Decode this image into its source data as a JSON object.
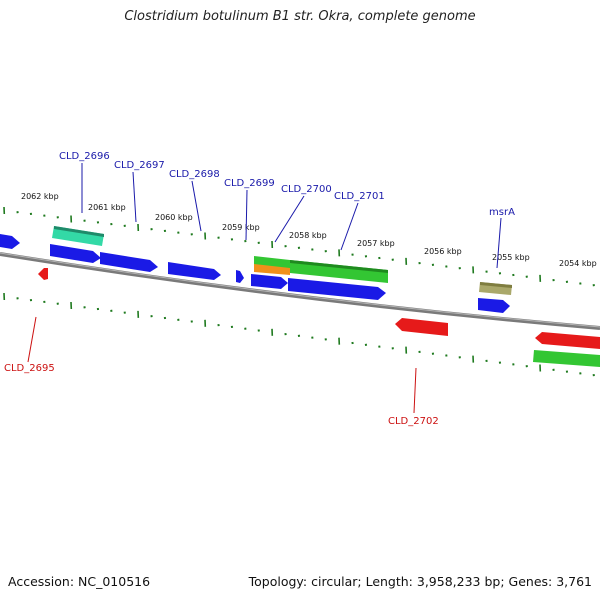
{
  "title": "Clostridium botulinum B1 str. Okra, complete genome",
  "footer": {
    "accession": "Accession: NC_010516",
    "topology": "Topology: circular; Length: 3,958,233 bp; Genes: 3,761"
  },
  "colors": {
    "backbone": "#7a7a7a",
    "tick": "#1f7a1f",
    "label_plus": "#1a1aaa",
    "label_minus": "#cc1111",
    "gene_blue": "#1a1ae6",
    "gene_red": "#e61a1a",
    "gene_green": "#33c633",
    "gene_teal": "#33d9a6",
    "gene_orange": "#f0901a",
    "gene_olive": "#aaa86a"
  },
  "kbp_labels": [
    "2062 kbp",
    "2061 kbp",
    "2060 kbp",
    "2059 kbp",
    "2058 kbp",
    "2057 kbp",
    "2056 kbp",
    "2055 kbp",
    "2054 kbp"
  ],
  "gene_labels": [
    "CLD_2695",
    "CLD_2696",
    "CLD_2697",
    "CLD_2698",
    "CLD_2699",
    "CLD_2700",
    "CLD_2701",
    "msrA",
    "CLD_2702"
  ]
}
